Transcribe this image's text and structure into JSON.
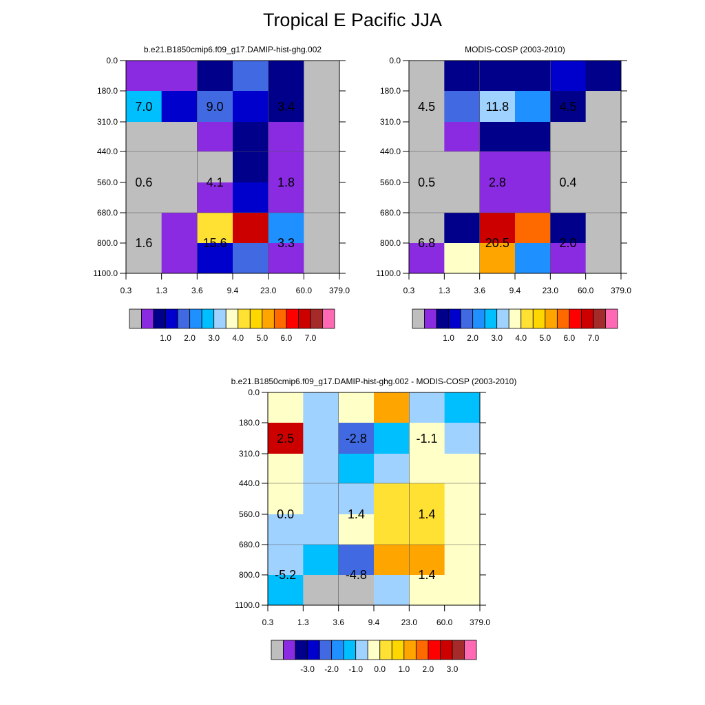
{
  "title": "Tropical E Pacific JJA",
  "colors": {
    "panel1_palette": [
      "#bebebe",
      "#8a2be2",
      "#00008b",
      "#0000cd",
      "#4169e1",
      "#1e90ff",
      "#00bfff",
      "#a0d2ff",
      "#ffffc8",
      "#ffe133",
      "#ffd700",
      "#ffa500",
      "#ff6a00",
      "#ff0000",
      "#cd0000",
      "#a52a2a",
      "#ff69b4"
    ],
    "panel3_palette": [
      "#bebebe",
      "#8a2be2",
      "#00008b",
      "#0000cd",
      "#4169e1",
      "#1e90ff",
      "#00bfff",
      "#a0d2ff",
      "#ffffc8",
      "#ffe133",
      "#ffd700",
      "#ffa500",
      "#ff6a00",
      "#ff0000",
      "#cd0000",
      "#a52a2a",
      "#ff69b4"
    ]
  },
  "chart_data": [
    {
      "type": "heatmap",
      "title": "b.e21.B1850cmip6.f09_g17.DAMIP-hist-ghg.002",
      "x_ticks": [
        "0.3",
        "1.3",
        "3.6",
        "9.4",
        "23.0",
        "60.0",
        "379.0"
      ],
      "y_ticks": [
        "0.0",
        "180.0",
        "310.0",
        "440.0",
        "560.0",
        "680.0",
        "800.0",
        "1100.0"
      ],
      "cells": [
        [
          "#8a2be2",
          "#8a2be2",
          "#00008b",
          "#4169e1",
          "#00008b",
          "#bebebe"
        ],
        [
          "#00bfff",
          "#0000cd",
          "#4169e1",
          "#0000cd",
          "#00008b",
          "#bebebe"
        ],
        [
          "#bebebe",
          "#bebebe",
          "#8a2be2",
          "#00008b",
          "#8a2be2",
          "#bebebe"
        ],
        [
          "#bebebe",
          "#bebebe",
          "#bebebe",
          "#00008b",
          "#8a2be2",
          "#bebebe"
        ],
        [
          "#bebebe",
          "#bebebe",
          "#8a2be2",
          "#0000cd",
          "#8a2be2",
          "#bebebe"
        ],
        [
          "#bebebe",
          "#8a2be2",
          "#ffe133",
          "#cd0000",
          "#1e90ff",
          "#bebebe"
        ],
        [
          "#bebebe",
          "#8a2be2",
          "#0000cd",
          "#4169e1",
          "#8a2be2",
          "#bebebe"
        ]
      ],
      "annotations": [
        {
          "col": 0.5,
          "row": 1.5,
          "text": "7.0"
        },
        {
          "col": 2.5,
          "row": 1.5,
          "text": "9.0"
        },
        {
          "col": 4.5,
          "row": 1.5,
          "text": "3.4"
        },
        {
          "col": 0.5,
          "row": 4.0,
          "text": "0.6"
        },
        {
          "col": 2.5,
          "row": 4.0,
          "text": "4.1"
        },
        {
          "col": 4.5,
          "row": 4.0,
          "text": "1.8"
        },
        {
          "col": 0.5,
          "row": 6.0,
          "text": "1.6"
        },
        {
          "col": 2.5,
          "row": 6.0,
          "text": "15.6"
        },
        {
          "col": 4.5,
          "row": 6.0,
          "text": "3.3"
        }
      ],
      "colorbar_labels": [
        "1.0",
        "2.0",
        "3.0",
        "4.0",
        "5.0",
        "6.0",
        "7.0"
      ]
    },
    {
      "type": "heatmap",
      "title": "MODIS-COSP (2003-2010)",
      "x_ticks": [
        "0.3",
        "1.3",
        "3.6",
        "9.4",
        "23.0",
        "60.0",
        "379.0"
      ],
      "y_ticks": [
        "0.0",
        "180.0",
        "310.0",
        "440.0",
        "560.0",
        "680.0",
        "800.0",
        "1100.0"
      ],
      "cells": [
        [
          "#bebebe",
          "#00008b",
          "#00008b",
          "#00008b",
          "#0000cd",
          "#00008b"
        ],
        [
          "#bebebe",
          "#4169e1",
          "#a0d2ff",
          "#1e90ff",
          "#00008b",
          "#bebebe"
        ],
        [
          "#bebebe",
          "#8a2be2",
          "#00008b",
          "#00008b",
          "#bebebe",
          "#bebebe"
        ],
        [
          "#bebebe",
          "#bebebe",
          "#8a2be2",
          "#8a2be2",
          "#bebebe",
          "#bebebe"
        ],
        [
          "#bebebe",
          "#bebebe",
          "#8a2be2",
          "#8a2be2",
          "#bebebe",
          "#bebebe"
        ],
        [
          "#bebebe",
          "#00008b",
          "#cd0000",
          "#ff6a00",
          "#00008b",
          "#bebebe"
        ],
        [
          "#8a2be2",
          "#ffffc8",
          "#ffa500",
          "#1e90ff",
          "#8a2be2",
          "#bebebe"
        ]
      ],
      "annotations": [
        {
          "col": 0.5,
          "row": 1.5,
          "text": "4.5"
        },
        {
          "col": 2.5,
          "row": 1.5,
          "text": "11.8"
        },
        {
          "col": 4.5,
          "row": 1.5,
          "text": "4.5"
        },
        {
          "col": 0.5,
          "row": 4.0,
          "text": "0.5"
        },
        {
          "col": 2.5,
          "row": 4.0,
          "text": "2.8"
        },
        {
          "col": 4.5,
          "row": 4.0,
          "text": "0.4"
        },
        {
          "col": 0.5,
          "row": 6.0,
          "text": "6.8"
        },
        {
          "col": 2.5,
          "row": 6.0,
          "text": "20.5"
        },
        {
          "col": 4.5,
          "row": 6.0,
          "text": "2.0"
        }
      ],
      "colorbar_labels": [
        "1.0",
        "2.0",
        "3.0",
        "4.0",
        "5.0",
        "6.0",
        "7.0"
      ]
    },
    {
      "type": "heatmap",
      "title": "b.e21.B1850cmip6.f09_g17.DAMIP-hist-ghg.002 - MODIS-COSP (2003-2010)",
      "x_ticks": [
        "0.3",
        "1.3",
        "3.6",
        "9.4",
        "23.0",
        "60.0",
        "379.0"
      ],
      "y_ticks": [
        "0.0",
        "180.0",
        "310.0",
        "440.0",
        "560.0",
        "680.0",
        "800.0",
        "1100.0"
      ],
      "cells": [
        [
          "#ffffc8",
          "#a0d2ff",
          "#ffffc8",
          "#ffa500",
          "#a0d2ff",
          "#00bfff"
        ],
        [
          "#cd0000",
          "#a0d2ff",
          "#4169e1",
          "#00bfff",
          "#ffffc8",
          "#a0d2ff"
        ],
        [
          "#ffffc8",
          "#a0d2ff",
          "#00bfff",
          "#a0d2ff",
          "#ffffc8",
          "#ffffc8"
        ],
        [
          "#ffffc8",
          "#a0d2ff",
          "#a0d2ff",
          "#ffe133",
          "#ffe133",
          "#ffffc8"
        ],
        [
          "#a0d2ff",
          "#a0d2ff",
          "#ffffc8",
          "#ffe133",
          "#ffe133",
          "#ffffc8"
        ],
        [
          "#a0d2ff",
          "#00bfff",
          "#4169e1",
          "#ffa500",
          "#ffa500",
          "#ffffc8"
        ],
        [
          "#00bfff",
          "#bebebe",
          "#bebebe",
          "#a0d2ff",
          "#ffffc8",
          "#ffffc8"
        ]
      ],
      "annotations": [
        {
          "col": 0.5,
          "row": 1.5,
          "text": "2.5"
        },
        {
          "col": 2.5,
          "row": 1.5,
          "text": "-2.8"
        },
        {
          "col": 4.5,
          "row": 1.5,
          "text": "-1.1"
        },
        {
          "col": 0.5,
          "row": 4.0,
          "text": "0.0"
        },
        {
          "col": 2.5,
          "row": 4.0,
          "text": "1.4"
        },
        {
          "col": 4.5,
          "row": 4.0,
          "text": "1.4"
        },
        {
          "col": 0.5,
          "row": 6.0,
          "text": "-5.2"
        },
        {
          "col": 2.5,
          "row": 6.0,
          "text": "-4.8"
        },
        {
          "col": 4.5,
          "row": 6.0,
          "text": "1.4"
        }
      ],
      "colorbar_labels": [
        "-3.0",
        "-2.0",
        "-1.0",
        "0.0",
        "1.0",
        "2.0",
        "3.0"
      ]
    }
  ]
}
